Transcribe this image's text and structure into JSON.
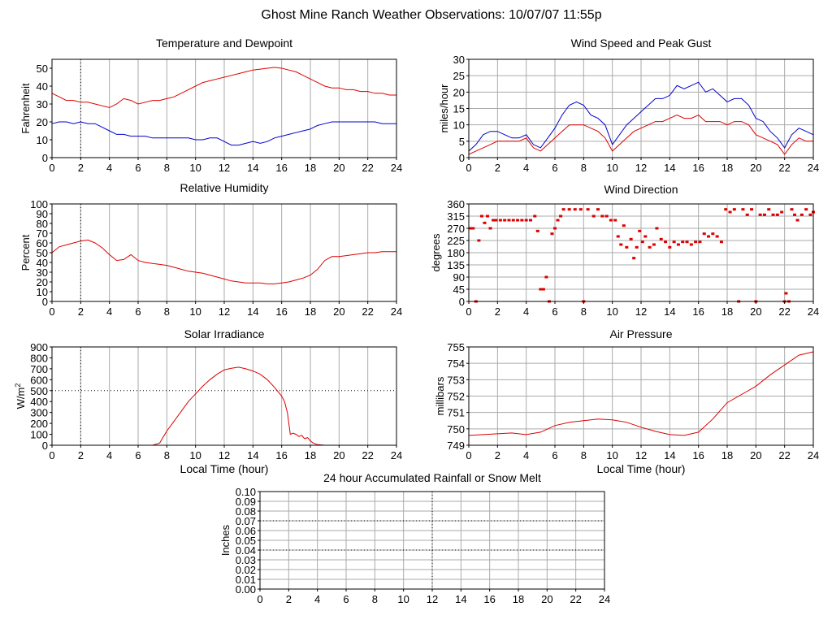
{
  "page_title": "Ghost Mine Ranch Weather Observations: 10/07/07 11:55p",
  "chart_data": [
    {
      "id": "temp",
      "type": "line",
      "title": "Temperature and Dewpoint",
      "xlabel": "",
      "ylabel": "Fahrenheit",
      "xlim": [
        0,
        24
      ],
      "ylim": [
        0,
        55
      ],
      "yticks": [
        0,
        10,
        20,
        30,
        40,
        50
      ],
      "yticklabels": [
        "0",
        "10",
        "20",
        "30",
        "40",
        "50"
      ],
      "x": [
        0,
        0.5,
        1,
        1.5,
        2,
        2.5,
        3,
        3.5,
        4,
        4.5,
        5,
        5.5,
        6,
        6.5,
        7,
        7.5,
        8,
        8.5,
        9,
        9.5,
        10,
        10.5,
        11,
        11.5,
        12,
        12.5,
        13,
        13.5,
        14,
        14.5,
        15,
        15.5,
        16,
        16.5,
        17,
        17.5,
        18,
        18.5,
        19,
        19.5,
        20,
        20.5,
        21,
        21.5,
        22,
        22.5,
        23,
        23.5,
        24
      ],
      "series": [
        {
          "color": "#dd0000",
          "values": [
            36,
            34,
            32,
            32,
            31,
            31,
            30,
            29,
            28,
            30,
            33,
            32,
            30,
            31,
            32,
            32,
            33,
            34,
            36,
            38,
            40,
            42,
            43,
            44,
            45,
            46,
            47,
            48,
            49,
            49.5,
            50,
            50.5,
            50,
            49,
            48,
            46,
            44,
            42,
            40,
            39,
            39,
            38,
            38,
            37,
            37,
            36,
            36,
            35,
            35
          ]
        },
        {
          "color": "#0000cc",
          "values": [
            19,
            20,
            20,
            19,
            20,
            19,
            19,
            17,
            15,
            13,
            13,
            12,
            12,
            12,
            11,
            11,
            11,
            11,
            11,
            11,
            10,
            10,
            11,
            11,
            9,
            7,
            7,
            8,
            9,
            8,
            9,
            11,
            12,
            13,
            14,
            15,
            16,
            18,
            19,
            20,
            20,
            20,
            20,
            20,
            20,
            20,
            19,
            19,
            19
          ]
        }
      ]
    },
    {
      "id": "wind",
      "type": "line",
      "title": "Wind Speed and Peak Gust",
      "xlabel": "",
      "ylabel": "miles/hour",
      "xlim": [
        0,
        24
      ],
      "ylim": [
        0,
        30
      ],
      "yticks": [
        0,
        5,
        10,
        15,
        20,
        25,
        30
      ],
      "yticklabels": [
        "0",
        "5",
        "10",
        "15",
        "20",
        "25",
        "30"
      ],
      "x": [
        0,
        0.5,
        1,
        1.5,
        2,
        2.5,
        3,
        3.5,
        4,
        4.5,
        5,
        5.5,
        6,
        6.5,
        7,
        7.5,
        8,
        8.5,
        9,
        9.5,
        10,
        10.5,
        11,
        11.5,
        12,
        12.5,
        13,
        13.5,
        14,
        14.5,
        15,
        15.5,
        16,
        16.5,
        17,
        17.5,
        18,
        18.5,
        19,
        19.5,
        20,
        20.5,
        21,
        21.5,
        22,
        22.5,
        23,
        23.5,
        24
      ],
      "series": [
        {
          "color": "#0000cc",
          "values": [
            2,
            4,
            7,
            8,
            8,
            7,
            6,
            6,
            7,
            4,
            3,
            6,
            9,
            13,
            16,
            17,
            16,
            13,
            12,
            10,
            4,
            7,
            10,
            12,
            14,
            16,
            18,
            18,
            19,
            22,
            21,
            22,
            23,
            20,
            21,
            19,
            17,
            18,
            18,
            16,
            12,
            11,
            8,
            6,
            3,
            7,
            9,
            8,
            7
          ]
        },
        {
          "color": "#dd0000",
          "values": [
            1,
            2,
            3,
            4,
            5,
            5,
            5,
            5,
            6,
            3,
            2,
            4,
            6,
            8,
            10,
            10,
            10,
            9,
            8,
            6,
            2,
            4,
            6,
            8,
            9,
            10,
            11,
            11,
            12,
            13,
            12,
            12,
            13,
            11,
            11,
            11,
            10,
            11,
            11,
            10,
            7,
            6,
            5,
            4,
            1,
            4,
            6,
            5,
            5
          ]
        }
      ]
    },
    {
      "id": "humidity",
      "type": "line",
      "title": "Relative Humidity",
      "xlabel": "",
      "ylabel": "Percent",
      "xlim": [
        0,
        24
      ],
      "ylim": [
        0,
        100
      ],
      "yticks": [
        0,
        10,
        20,
        30,
        40,
        50,
        60,
        70,
        80,
        90,
        100
      ],
      "yticklabels": [
        "0",
        "10",
        "20",
        "30",
        "40",
        "50",
        "60",
        "70",
        "80",
        "90",
        "100"
      ],
      "x": [
        0,
        0.5,
        1,
        1.5,
        2,
        2.5,
        3,
        3.5,
        4,
        4.5,
        5,
        5.5,
        6,
        6.5,
        7,
        7.5,
        8,
        8.5,
        9,
        9.5,
        10,
        10.5,
        11,
        11.5,
        12,
        12.5,
        13,
        13.5,
        14,
        14.5,
        15,
        15.5,
        16,
        16.5,
        17,
        17.5,
        18,
        18.5,
        19,
        19.5,
        20,
        20.5,
        21,
        21.5,
        22,
        22.5,
        23,
        23.5,
        24
      ],
      "series": [
        {
          "color": "#dd0000",
          "values": [
            50,
            56,
            58,
            60,
            62,
            63,
            60,
            55,
            48,
            42,
            43,
            48,
            42,
            40,
            39,
            38,
            37,
            35,
            33,
            31,
            30,
            29,
            27,
            25,
            23,
            21,
            20,
            19,
            19,
            19,
            18,
            18,
            19,
            20,
            22,
            24,
            27,
            33,
            42,
            46,
            46,
            47,
            48,
            49,
            50,
            50,
            51,
            51,
            51
          ]
        }
      ]
    },
    {
      "id": "direction",
      "type": "scatter",
      "title": "Wind Direction",
      "xlabel": "",
      "ylabel": "degrees",
      "xlim": [
        0,
        24
      ],
      "ylim": [
        0,
        360
      ],
      "yticks": [
        0,
        45,
        90,
        135,
        180,
        225,
        270,
        315,
        360
      ],
      "yticklabels": [
        "0",
        "45",
        "90",
        "135",
        "180",
        "225",
        "270",
        "315",
        "360"
      ],
      "series": [
        {
          "color": "#dd0000",
          "points": [
            [
              0.1,
              270
            ],
            [
              0.3,
              270
            ],
            [
              0.5,
              0
            ],
            [
              0.7,
              225
            ],
            [
              0.9,
              315
            ],
            [
              1.1,
              290
            ],
            [
              1.3,
              315
            ],
            [
              1.5,
              270
            ],
            [
              1.7,
              300
            ],
            [
              1.9,
              300
            ],
            [
              2.2,
              300
            ],
            [
              2.5,
              300
            ],
            [
              2.8,
              300
            ],
            [
              3.1,
              300
            ],
            [
              3.4,
              300
            ],
            [
              3.7,
              300
            ],
            [
              4.0,
              300
            ],
            [
              4.3,
              300
            ],
            [
              4.6,
              315
            ],
            [
              4.8,
              260
            ],
            [
              5.0,
              45
            ],
            [
              5.2,
              45
            ],
            [
              5.4,
              90
            ],
            [
              5.6,
              0
            ],
            [
              5.8,
              250
            ],
            [
              6.0,
              270
            ],
            [
              6.2,
              300
            ],
            [
              6.4,
              315
            ],
            [
              6.6,
              340
            ],
            [
              7.0,
              340
            ],
            [
              7.4,
              340
            ],
            [
              7.8,
              340
            ],
            [
              8.0,
              0
            ],
            [
              8.3,
              340
            ],
            [
              8.7,
              315
            ],
            [
              9.0,
              340
            ],
            [
              9.3,
              315
            ],
            [
              9.6,
              315
            ],
            [
              9.9,
              300
            ],
            [
              10.2,
              300
            ],
            [
              10.4,
              240
            ],
            [
              10.6,
              210
            ],
            [
              10.8,
              280
            ],
            [
              11.0,
              200
            ],
            [
              11.3,
              230
            ],
            [
              11.5,
              160
            ],
            [
              11.7,
              200
            ],
            [
              11.9,
              260
            ],
            [
              12.1,
              220
            ],
            [
              12.3,
              240
            ],
            [
              12.6,
              200
            ],
            [
              12.9,
              210
            ],
            [
              13.1,
              270
            ],
            [
              13.4,
              230
            ],
            [
              13.7,
              220
            ],
            [
              14.0,
              200
            ],
            [
              14.3,
              220
            ],
            [
              14.6,
              210
            ],
            [
              14.9,
              220
            ],
            [
              15.2,
              220
            ],
            [
              15.5,
              210
            ],
            [
              15.8,
              220
            ],
            [
              16.1,
              220
            ],
            [
              16.4,
              250
            ],
            [
              16.7,
              240
            ],
            [
              17.0,
              250
            ],
            [
              17.3,
              240
            ],
            [
              17.6,
              220
            ],
            [
              17.9,
              340
            ],
            [
              18.2,
              330
            ],
            [
              18.5,
              340
            ],
            [
              18.8,
              0
            ],
            [
              19.1,
              340
            ],
            [
              19.4,
              320
            ],
            [
              19.7,
              340
            ],
            [
              20.0,
              0
            ],
            [
              20.3,
              320
            ],
            [
              20.6,
              320
            ],
            [
              20.9,
              340
            ],
            [
              21.2,
              320
            ],
            [
              21.5,
              320
            ],
            [
              21.8,
              330
            ],
            [
              22.0,
              0
            ],
            [
              22.1,
              30
            ],
            [
              22.3,
              0
            ],
            [
              22.5,
              340
            ],
            [
              22.7,
              320
            ],
            [
              22.9,
              300
            ],
            [
              23.2,
              320
            ],
            [
              23.5,
              340
            ],
            [
              23.8,
              320
            ],
            [
              24.0,
              330
            ]
          ]
        }
      ]
    },
    {
      "id": "solar",
      "type": "line",
      "title": "Solar Irradiance",
      "xlabel": "Local Time (hour)",
      "ylabel": "W/m",
      "ylabel_sup": "2",
      "xlim": [
        0,
        24
      ],
      "ylim": [
        0,
        900
      ],
      "yticks": [
        0,
        100,
        200,
        300,
        400,
        500,
        600,
        700,
        800,
        900
      ],
      "yticklabels": [
        "0",
        "100",
        "200",
        "300",
        "400",
        "500",
        "600",
        "700",
        "800",
        "900"
      ],
      "x": [
        0,
        1,
        2,
        3,
        4,
        5,
        6,
        7,
        7.5,
        8,
        8.5,
        9,
        9.5,
        10,
        10.5,
        11,
        11.5,
        12,
        12.5,
        13,
        13.5,
        14,
        14.5,
        15,
        15.5,
        16,
        16.2,
        16.4,
        16.6,
        16.8,
        17,
        17.2,
        17.4,
        17.6,
        17.8,
        18,
        18.2,
        18.5,
        19,
        20,
        21,
        22,
        23,
        24
      ],
      "series": [
        {
          "color": "#dd0000",
          "values": [
            0,
            0,
            0,
            0,
            0,
            0,
            0,
            0,
            20,
            130,
            220,
            310,
            400,
            470,
            540,
            600,
            650,
            690,
            705,
            715,
            700,
            680,
            650,
            600,
            530,
            450,
            400,
            300,
            100,
            110,
            100,
            80,
            90,
            60,
            70,
            40,
            20,
            5,
            0,
            0,
            0,
            0,
            0,
            0
          ]
        }
      ]
    },
    {
      "id": "pressure",
      "type": "line",
      "title": "Air Pressure",
      "xlabel": "Local Time (hour)",
      "ylabel": "millibars",
      "xlim": [
        0,
        24
      ],
      "ylim": [
        749,
        755
      ],
      "yticks": [
        749,
        750,
        751,
        752,
        753,
        754,
        755
      ],
      "yticklabels": [
        "749",
        "750",
        "751",
        "752",
        "753",
        "754",
        "755"
      ],
      "x": [
        0,
        1,
        2,
        3,
        4,
        5,
        6,
        7,
        8,
        9,
        10,
        11,
        12,
        13,
        14,
        15,
        16,
        17,
        18,
        19,
        20,
        21,
        22,
        23,
        24
      ],
      "series": [
        {
          "color": "#dd0000",
          "values": [
            749.6,
            749.65,
            749.7,
            749.75,
            749.65,
            749.8,
            750.2,
            750.4,
            750.5,
            750.6,
            750.55,
            750.4,
            750.1,
            749.85,
            749.65,
            749.6,
            749.8,
            750.6,
            751.6,
            752.1,
            752.6,
            753.3,
            753.9,
            754.5,
            754.7
          ]
        }
      ]
    },
    {
      "id": "rain",
      "type": "line",
      "title": "24 hour Accumulated Rainfall or Snow Melt",
      "xlabel": "",
      "ylabel": "Inches",
      "xlim": [
        0,
        24
      ],
      "ylim": [
        0,
        0.1
      ],
      "yticks": [
        0,
        0.01,
        0.02,
        0.03,
        0.04,
        0.05,
        0.06,
        0.07,
        0.08,
        0.09,
        0.1
      ],
      "yticklabels": [
        "0.00",
        "0.01",
        "0.02",
        "0.03",
        "0.04",
        "0.05",
        "0.06",
        "0.07",
        "0.08",
        "0.09",
        "0.10"
      ],
      "x": [
        0,
        24
      ],
      "series": [
        {
          "color": "#dd0000",
          "values": [
            0,
            0
          ]
        }
      ]
    }
  ],
  "x_ticks": [
    0,
    2,
    4,
    6,
    8,
    10,
    12,
    14,
    16,
    18,
    20,
    22,
    24
  ],
  "x_ticklabels": [
    "0",
    "2",
    "4",
    "6",
    "8",
    "10",
    "12",
    "14",
    "16",
    "18",
    "20",
    "22",
    "24"
  ]
}
